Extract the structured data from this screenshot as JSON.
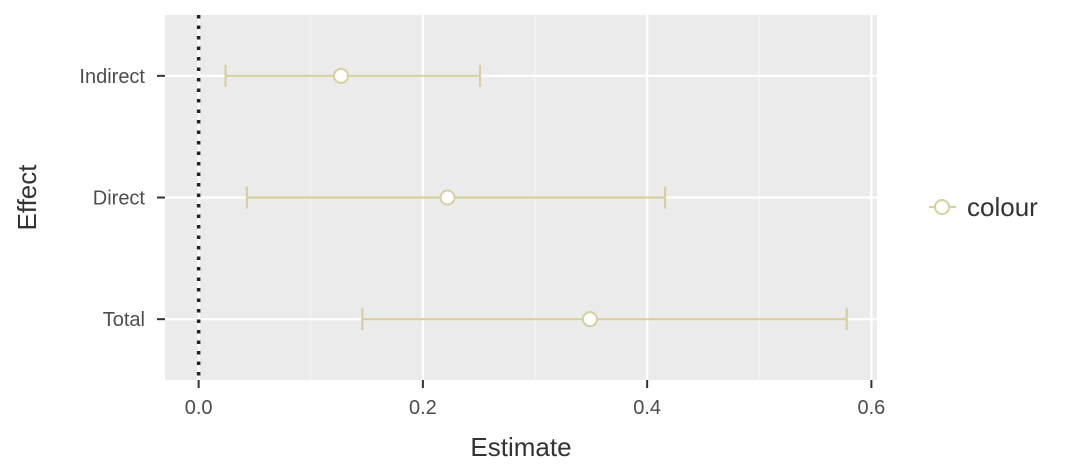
{
  "chart_data": {
    "type": "errorbar",
    "xlabel": "Estimate",
    "ylabel": "Effect",
    "xlim": [
      -0.03,
      0.605
    ],
    "x_ticks": [
      0.0,
      0.2,
      0.4,
      0.6
    ],
    "x_tick_labels": [
      "0.0",
      "0.2",
      "0.4",
      "0.6"
    ],
    "categories": [
      "Indirect",
      "Direct",
      "Total"
    ],
    "series": [
      {
        "name": "colour",
        "estimates": [
          0.127,
          0.222,
          0.349
        ],
        "lower": [
          0.024,
          0.043,
          0.146
        ],
        "upper": [
          0.251,
          0.416,
          0.578
        ]
      }
    ],
    "reference_line": {
      "x": 0.0,
      "style": "dotted"
    },
    "grid": true,
    "legend_position": "right",
    "colors": {
      "series": "#d6d09c",
      "panel": "#ebebeb",
      "grid_major": "#ffffff",
      "reference": "#222222"
    }
  }
}
